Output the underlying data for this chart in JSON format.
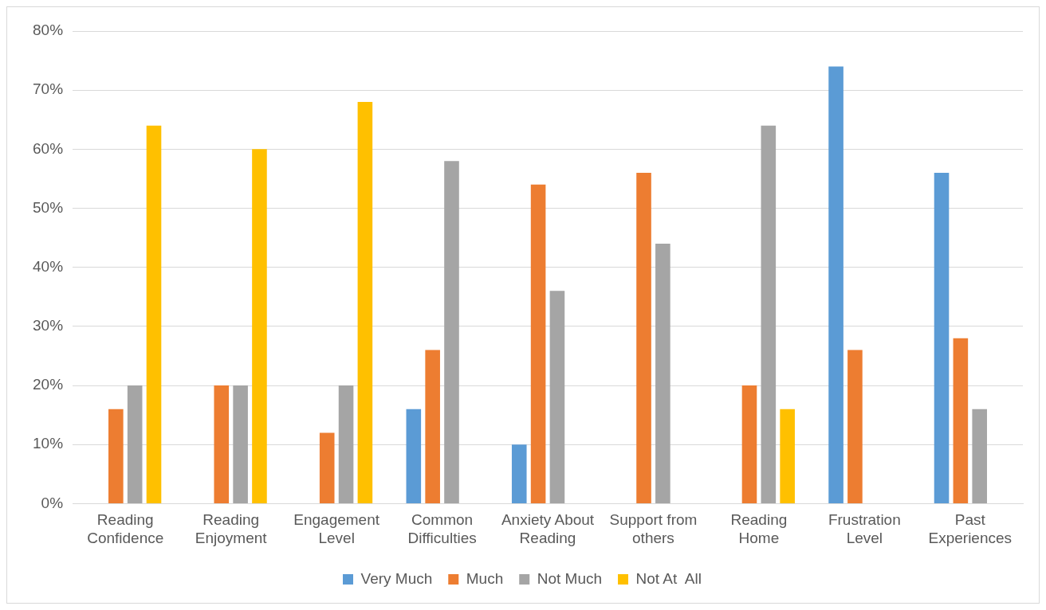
{
  "chart_data": {
    "type": "bar",
    "categories": [
      "Reading Confidence",
      "Reading Enjoyment",
      "Engagement Level",
      "Common Difficulties",
      "Anxiety About Reading",
      "Support from others",
      "Reading Home",
      "Frustration Level",
      "Past Experiences"
    ],
    "series": [
      {
        "name": "Very Much",
        "color": "#5b9bd5",
        "values": [
          0,
          0,
          0,
          16,
          10,
          0,
          0,
          74,
          56
        ]
      },
      {
        "name": "Much",
        "color": "#ed7d31",
        "values": [
          16,
          20,
          12,
          26,
          54,
          56,
          20,
          26,
          28
        ]
      },
      {
        "name": "Not Much",
        "color": "#a5a5a5",
        "values": [
          20,
          20,
          20,
          58,
          36,
          44,
          64,
          0,
          16
        ]
      },
      {
        "name": "Not At  All",
        "color": "#ffc000",
        "values": [
          64,
          60,
          68,
          0,
          0,
          0,
          16,
          0,
          0
        ]
      }
    ],
    "ylim": [
      0,
      80
    ],
    "yticks": [
      {
        "value": 0,
        "label": "0%"
      },
      {
        "value": 10,
        "label": "10%"
      },
      {
        "value": 20,
        "label": "20%"
      },
      {
        "value": 30,
        "label": "30%"
      },
      {
        "value": 40,
        "label": "40%"
      },
      {
        "value": 50,
        "label": "50%"
      },
      {
        "value": 60,
        "label": "60%"
      },
      {
        "value": 70,
        "label": "70%"
      },
      {
        "value": 80,
        "label": "80%"
      }
    ],
    "grid": "y",
    "legend": "bottom"
  }
}
